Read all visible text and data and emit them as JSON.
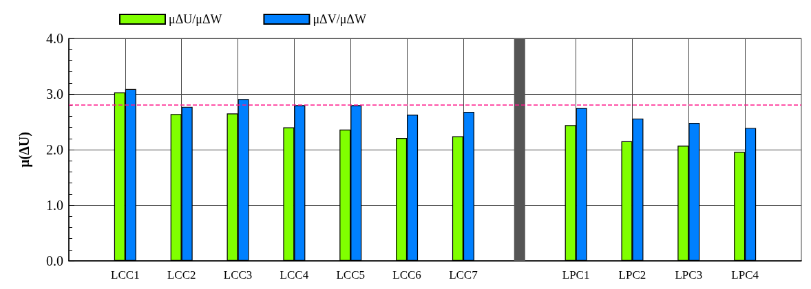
{
  "chart_data": {
    "type": "bar",
    "ylabel": "μ(ΔU)",
    "categories": [
      null,
      "LCC1",
      "LCC2",
      "LCC3",
      "LCC4",
      "LCC5",
      "LCC6",
      "LCC7",
      null,
      "LPC1",
      "LPC2",
      "LPC3",
      "LPC4",
      null
    ],
    "series": [
      {
        "name": "μΔU/μΔW",
        "color": "#80ff00",
        "values": [
          null,
          3.03,
          2.64,
          2.65,
          2.4,
          2.36,
          2.21,
          2.24,
          null,
          2.44,
          2.15,
          2.07,
          1.96,
          null
        ]
      },
      {
        "name": "μΔV/μΔW",
        "color": "#0080ff",
        "values": [
          null,
          3.09,
          2.77,
          2.91,
          2.8,
          2.8,
          2.63,
          2.68,
          null,
          2.75,
          2.56,
          2.48,
          2.39,
          null
        ]
      },
      {
        "color": "#555555",
        "values": [
          null,
          null,
          null,
          null,
          null,
          null,
          null,
          null,
          4,
          null,
          null,
          null,
          null,
          null
        ]
      }
    ],
    "ylim": [
      0,
      4
    ],
    "yticks": [
      {
        "value": 0,
        "label": "0.0"
      },
      {
        "value": 1,
        "label": "1.0"
      },
      {
        "value": 2,
        "label": "2.0"
      },
      {
        "value": 3,
        "label": "3.0"
      },
      {
        "value": 4,
        "label": "4.0"
      }
    ],
    "ref_lines": [
      {
        "axis": "y",
        "value": 2.81,
        "color": "#ff1a8c",
        "line_style": "dashed"
      }
    ],
    "grid": true,
    "legend": "top left"
  }
}
